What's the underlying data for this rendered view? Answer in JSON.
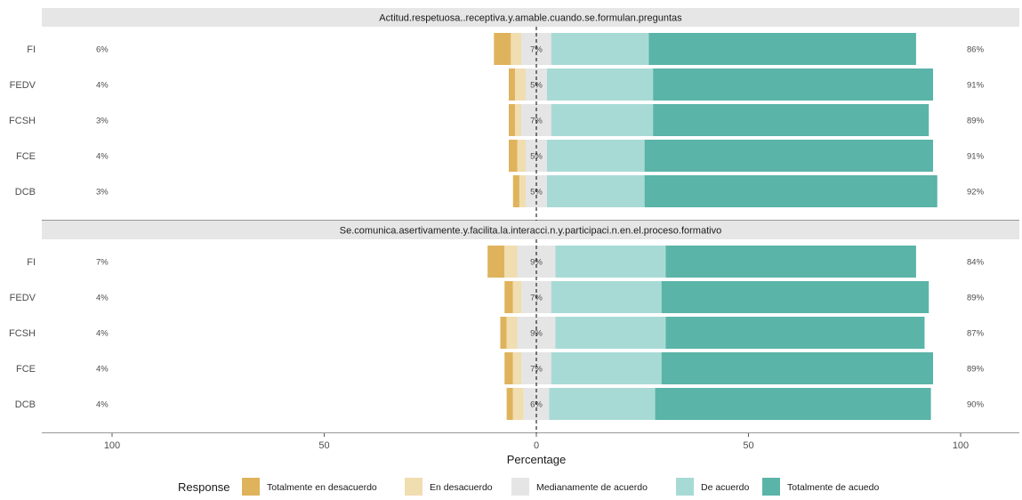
{
  "chart_data": {
    "type": "bar",
    "orientation": "horizontal-diverging",
    "xlabel": "Percentage",
    "xticks": [
      "100",
      "50",
      "0",
      "50",
      "100"
    ],
    "xlim": [
      -100,
      100
    ],
    "legend": {
      "title": "Response",
      "position": "bottom",
      "items": [
        {
          "name": "Totalmente en desacuerdo",
          "color": "#dfb35c"
        },
        {
          "name": "En desacuerdo",
          "color": "#f0ddb0"
        },
        {
          "name": "Medianamente de acuerdo",
          "color": "#e5e5e5"
        },
        {
          "name": "De acuerdo",
          "color": "#a8dad5"
        },
        {
          "name": "Totalmente de acuedo",
          "color": "#5ab4a7"
        }
      ]
    },
    "panels": [
      {
        "title": "Actitud.respetuosa..receptiva.y.amable.cuando.se.formulan.preguntas",
        "rows": [
          {
            "label": "FI",
            "low_label": "6%",
            "neutral_label": "7%",
            "high_label": "86%",
            "values": [
              4,
              2.5,
              7,
              23,
              63
            ]
          },
          {
            "label": "FEDV",
            "low_label": "4%",
            "neutral_label": "5%",
            "high_label": "91%",
            "values": [
              1.5,
              2.5,
              5,
              25,
              66
            ]
          },
          {
            "label": "FCSH",
            "low_label": "3%",
            "neutral_label": "7%",
            "high_label": "89%",
            "values": [
              1.5,
              1.5,
              7,
              24,
              65
            ]
          },
          {
            "label": "FCE",
            "low_label": "4%",
            "neutral_label": "5%",
            "high_label": "91%",
            "values": [
              2,
              2,
              5,
              23,
              68
            ]
          },
          {
            "label": "DCB",
            "low_label": "3%",
            "neutral_label": "5%",
            "high_label": "92%",
            "values": [
              1.5,
              1.5,
              5,
              23,
              69
            ]
          }
        ]
      },
      {
        "title": "Se.comunica.asertivamente.y.facilita.la.interacci.n.y.participaci.n.en.el.proceso.formativo",
        "rows": [
          {
            "label": "FI",
            "low_label": "7%",
            "neutral_label": "9%",
            "high_label": "84%",
            "values": [
              4,
              3,
              9,
              26,
              59
            ]
          },
          {
            "label": "FEDV",
            "low_label": "4%",
            "neutral_label": "7%",
            "high_label": "89%",
            "values": [
              2,
              2,
              7,
              26,
              63
            ]
          },
          {
            "label": "FCSH",
            "low_label": "4%",
            "neutral_label": "9%",
            "high_label": "87%",
            "values": [
              1.5,
              2.5,
              9,
              26,
              61
            ]
          },
          {
            "label": "FCE",
            "low_label": "4%",
            "neutral_label": "7%",
            "high_label": "89%",
            "values": [
              2,
              2,
              7,
              26,
              64
            ]
          },
          {
            "label": "DCB",
            "low_label": "4%",
            "neutral_label": "6%",
            "high_label": "90%",
            "values": [
              1.5,
              2.5,
              6,
              25,
              65
            ]
          }
        ]
      }
    ]
  }
}
